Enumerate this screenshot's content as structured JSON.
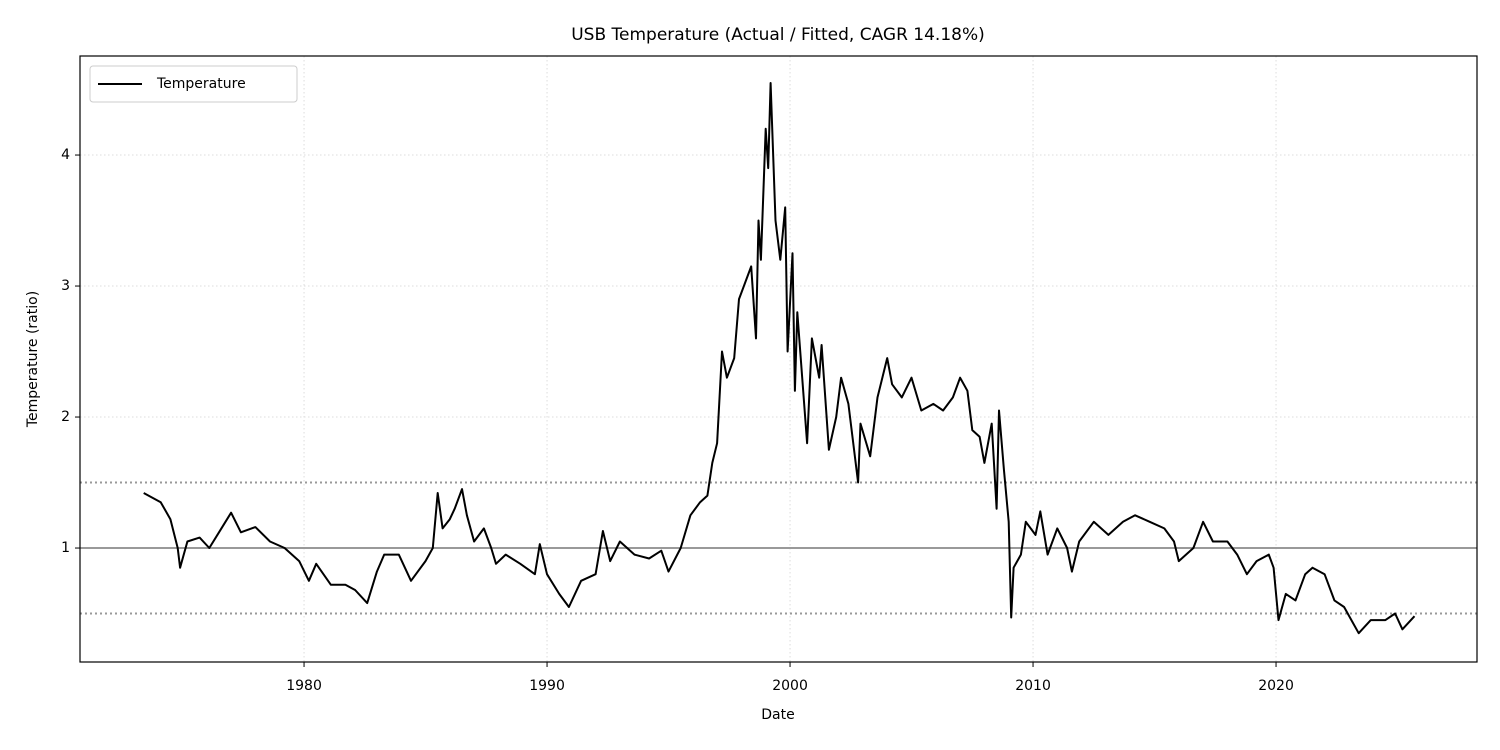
{
  "chart_data": {
    "type": "line",
    "title": "USB Temperature (Actual / Fitted, CAGR 14.18%)",
    "xlabel": "Date",
    "ylabel": "Temperature (ratio)",
    "x": [
      1973.4,
      1974.1,
      1974.5,
      1974.8,
      1974.9,
      1975.2,
      1975.7,
      1976.1,
      1976.5,
      1977.0,
      1977.4,
      1978.0,
      1978.6,
      1979.2,
      1979.8,
      1980.2,
      1980.5,
      1981.1,
      1981.7,
      1982.1,
      1982.6,
      1983.0,
      1983.3,
      1983.9,
      1984.4,
      1985.0,
      1985.3,
      1985.5,
      1985.7,
      1986.0,
      1986.2,
      1986.5,
      1986.7,
      1987.0,
      1987.4,
      1987.7,
      1987.9,
      1988.3,
      1988.9,
      1989.5,
      1989.7,
      1990.0,
      1990.5,
      1990.9,
      1991.4,
      1992.0,
      1992.3,
      1992.6,
      1993.0,
      1993.6,
      1994.2,
      1994.7,
      1995.0,
      1995.5,
      1995.9,
      1996.3,
      1996.6,
      1996.8,
      1997.0,
      1997.2,
      1997.4,
      1997.7,
      1997.9,
      1998.1,
      1998.4,
      1998.6,
      1998.7,
      1998.8,
      1999.0,
      1999.1,
      1999.2,
      1999.4,
      1999.6,
      1999.8,
      1999.9,
      2000.1,
      2000.2,
      2000.3,
      2000.5,
      2000.7,
      2000.9,
      2001.2,
      2001.3,
      2001.6,
      2001.9,
      2002.1,
      2002.4,
      2002.8,
      2002.9,
      2003.3,
      2003.6,
      2004.0,
      2004.2,
      2004.6,
      2005.0,
      2005.4,
      2005.9,
      2006.3,
      2006.7,
      2007.0,
      2007.3,
      2007.5,
      2007.8,
      2008.0,
      2008.3,
      2008.5,
      2008.6,
      2008.8,
      2009.0,
      2009.1,
      2009.2,
      2009.5,
      2009.7,
      2010.1,
      2010.3,
      2010.6,
      2011.0,
      2011.4,
      2011.6,
      2011.9,
      2012.5,
      2013.1,
      2013.7,
      2014.2,
      2014.8,
      2015.4,
      2015.8,
      2016.0,
      2016.6,
      2017.0,
      2017.4,
      2018.0,
      2018.4,
      2018.8,
      2019.2,
      2019.7,
      2019.9,
      2020.1,
      2020.4,
      2020.8,
      2021.2,
      2021.5,
      2022.0,
      2022.4,
      2022.8,
      2023.1,
      2023.4,
      2023.9,
      2024.5,
      2024.9,
      2025.2,
      2025.7
    ],
    "series": [
      {
        "name": "Temperature",
        "color": "#000000",
        "values": [
          1.42,
          1.35,
          1.22,
          1.0,
          0.85,
          1.05,
          1.08,
          1.0,
          1.12,
          1.27,
          1.12,
          1.16,
          1.05,
          1.0,
          0.9,
          0.75,
          0.88,
          0.72,
          0.72,
          0.68,
          0.58,
          0.82,
          0.95,
          0.95,
          0.75,
          0.9,
          1.0,
          1.42,
          1.15,
          1.22,
          1.3,
          1.45,
          1.25,
          1.05,
          1.15,
          1.0,
          0.88,
          0.95,
          0.88,
          0.8,
          1.03,
          0.8,
          0.65,
          0.55,
          0.75,
          0.8,
          1.13,
          0.9,
          1.05,
          0.95,
          0.92,
          0.98,
          0.82,
          1.0,
          1.25,
          1.35,
          1.4,
          1.65,
          1.8,
          2.5,
          2.3,
          2.45,
          2.9,
          3.0,
          3.15,
          2.6,
          3.5,
          3.2,
          4.2,
          3.9,
          4.55,
          3.5,
          3.2,
          3.6,
          2.5,
          3.25,
          2.2,
          2.8,
          2.3,
          1.8,
          2.6,
          2.3,
          2.55,
          1.75,
          2.0,
          2.3,
          2.1,
          1.5,
          1.95,
          1.7,
          2.15,
          2.45,
          2.25,
          2.15,
          2.3,
          2.05,
          2.1,
          2.05,
          2.15,
          2.3,
          2.2,
          1.9,
          1.85,
          1.65,
          1.95,
          1.3,
          2.05,
          1.6,
          1.2,
          0.47,
          0.85,
          0.95,
          1.2,
          1.1,
          1.28,
          0.95,
          1.15,
          1.0,
          0.82,
          1.05,
          1.2,
          1.1,
          1.2,
          1.25,
          1.2,
          1.15,
          1.05,
          0.9,
          1.0,
          1.2,
          1.05,
          1.05,
          0.95,
          0.8,
          0.9,
          0.95,
          0.85,
          0.45,
          0.65,
          0.6,
          0.8,
          0.85,
          0.8,
          0.6,
          0.55,
          0.45,
          0.35,
          0.45,
          0.45,
          0.5,
          0.38,
          0.48
        ]
      }
    ],
    "xlim": [
      1970.78,
      2028.27
    ],
    "xticks": [
      1980,
      1990,
      2000,
      2010,
      2020
    ],
    "ylim": [
      0.13,
      4.756
    ],
    "yticks": [
      1,
      2,
      3,
      4
    ],
    "grid": true,
    "legend": "upper-left",
    "hlines": [
      {
        "value": 1,
        "style": "solid",
        "color": "#999999"
      },
      {
        "value": 1.5,
        "style": "dotted",
        "color": "#999999"
      },
      {
        "value": 0.5,
        "style": "dotted",
        "color": "#999999"
      }
    ]
  }
}
